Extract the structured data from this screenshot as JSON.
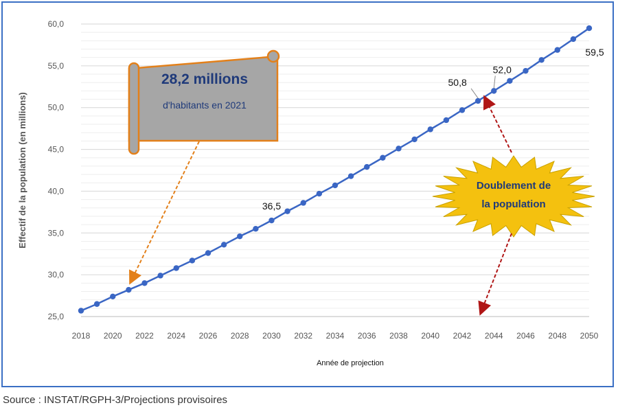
{
  "chart_data": {
    "type": "line",
    "xlabel": "Année de projection",
    "ylabel": "Effectif de la population (en millions)",
    "ylim": [
      25,
      60
    ],
    "xlim": [
      2018,
      2050
    ],
    "y_ticks": [
      "25,0",
      "30,0",
      "35,0",
      "40,0",
      "45,0",
      "50,0",
      "55,0",
      "60,0"
    ],
    "x_ticks": [
      "2018",
      "2020",
      "2022",
      "2024",
      "2026",
      "2028",
      "2030",
      "2032",
      "2034",
      "2036",
      "2038",
      "2040",
      "2042",
      "2044",
      "2046",
      "2048",
      "2050"
    ],
    "grid": "horizontal",
    "series": [
      {
        "color": "#3a66c4",
        "x": [
          2018,
          2019,
          2020,
          2021,
          2022,
          2023,
          2024,
          2025,
          2026,
          2027,
          2028,
          2029,
          2030,
          2031,
          2032,
          2033,
          2034,
          2035,
          2036,
          2037,
          2038,
          2039,
          2040,
          2041,
          2042,
          2043,
          2044,
          2045,
          2046,
          2047,
          2048,
          2049,
          2050
        ],
        "y": [
          25.7,
          26.5,
          27.4,
          28.2,
          29.0,
          29.9,
          30.8,
          31.7,
          32.6,
          33.6,
          34.6,
          35.5,
          36.5,
          37.6,
          38.6,
          39.7,
          40.7,
          41.8,
          42.9,
          44.0,
          45.1,
          46.2,
          47.4,
          48.5,
          49.7,
          50.8,
          52.0,
          53.2,
          54.4,
          55.7,
          56.9,
          58.2,
          59.5
        ]
      }
    ],
    "data_labels": [
      {
        "x": 2030,
        "y": 36.5,
        "text": "36,5"
      },
      {
        "x": 2043,
        "y": 50.8,
        "text": "50,8"
      },
      {
        "x": 2044,
        "y": 52.0,
        "text": "52,0"
      },
      {
        "x": 2050,
        "y": 59.5,
        "text": "59,5"
      }
    ],
    "annotations": {
      "scroll_title": "28,2 millions",
      "scroll_sub": "d'habitants en 2021",
      "burst_line1": "Doublement de",
      "burst_line2": "la population"
    },
    "colors": {
      "line": "#3a66c4",
      "scroll_fill": "#a6a6a6",
      "scroll_border": "#e3801a",
      "burst_fill": "#f4c10f",
      "orange_arrow": "#e3801a",
      "red_arrow": "#b01616",
      "frame": "#3a6fc4"
    }
  },
  "source": "Source : INSTAT/RGPH-3/Projections provisoires"
}
